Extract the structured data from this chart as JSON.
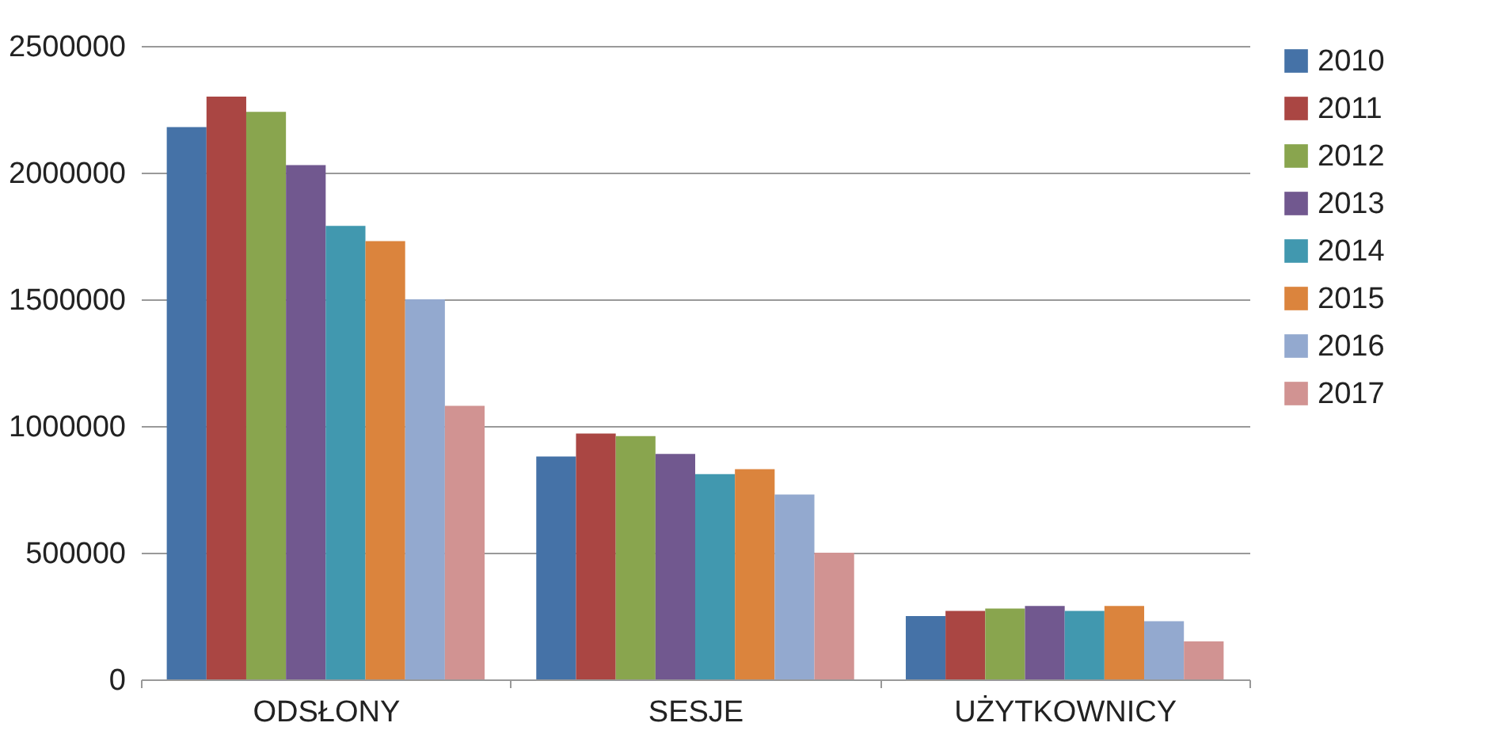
{
  "chart_data": {
    "type": "bar",
    "categories": [
      "ODSŁONY",
      "SESJE",
      "UŻYTKOWNICY"
    ],
    "series": [
      {
        "name": "2010",
        "color": "#4572a7",
        "values": [
          2180000,
          880000,
          250000
        ]
      },
      {
        "name": "2011",
        "color": "#aa4643",
        "values": [
          2300000,
          970000,
          270000
        ]
      },
      {
        "name": "2012",
        "color": "#89a54e",
        "values": [
          2240000,
          960000,
          280000
        ]
      },
      {
        "name": "2013",
        "color": "#71588f",
        "values": [
          2030000,
          890000,
          290000
        ]
      },
      {
        "name": "2014",
        "color": "#4198af",
        "values": [
          1790000,
          810000,
          270000
        ]
      },
      {
        "name": "2015",
        "color": "#db843d",
        "values": [
          1730000,
          830000,
          290000
        ]
      },
      {
        "name": "2016",
        "color": "#93a9cf",
        "values": [
          1500000,
          730000,
          230000
        ]
      },
      {
        "name": "2017",
        "color": "#d19392",
        "values": [
          1080000,
          500000,
          150000
        ]
      }
    ],
    "ylim": [
      0,
      2500000
    ],
    "yticks": [
      0,
      500000,
      1000000,
      1500000,
      2000000,
      2500000
    ],
    "grid": "y",
    "legend": "right"
  }
}
